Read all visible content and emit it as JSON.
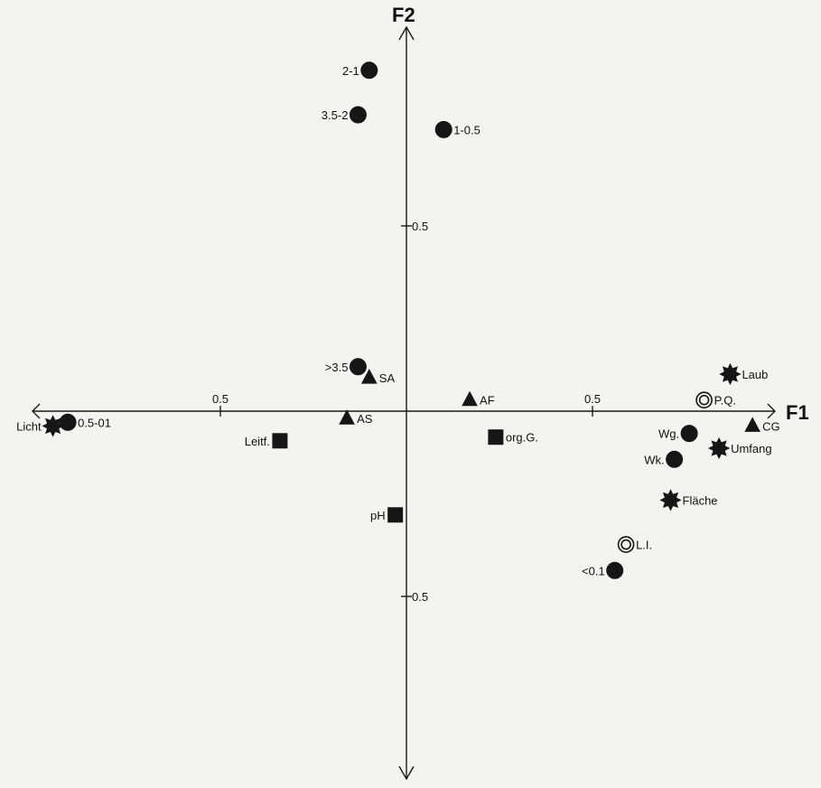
{
  "chart_data": {
    "type": "scatter",
    "title": "",
    "xlabel": "F1",
    "ylabel": "F2",
    "xlim": [
      -1.0,
      1.0
    ],
    "ylim": [
      -1.0,
      1.0
    ],
    "x_ticks": [
      {
        "value": -0.5,
        "label": "0.5"
      },
      {
        "value": 0.5,
        "label": "0.5"
      }
    ],
    "y_ticks": [
      {
        "value": 0.5,
        "label": "0.5"
      },
      {
        "value": -0.5,
        "label": "0.5"
      }
    ],
    "grid": false,
    "points": [
      {
        "label": "2-1",
        "x": -0.1,
        "y": 0.92,
        "marker": "circle",
        "label_side": "left"
      },
      {
        "label": "3.5-2",
        "x": -0.13,
        "y": 0.8,
        "marker": "circle",
        "label_side": "left"
      },
      {
        "label": "1-0.5",
        "x": 0.1,
        "y": 0.76,
        "marker": "circle",
        "label_side": "right"
      },
      {
        "label": ">3.5",
        "x": -0.13,
        "y": 0.12,
        "marker": "circle",
        "label_side": "left"
      },
      {
        "label": "0.5-01",
        "x": -0.91,
        "y": -0.03,
        "marker": "circle",
        "label_side": "right"
      },
      {
        "label": "Wg.",
        "x": 0.76,
        "y": -0.06,
        "marker": "circle",
        "label_side": "left"
      },
      {
        "label": "Wk.",
        "x": 0.72,
        "y": -0.13,
        "marker": "circle",
        "label_side": "left"
      },
      {
        "label": "<0.1",
        "x": 0.56,
        "y": -0.43,
        "marker": "circle",
        "label_side": "left"
      },
      {
        "label": "SA",
        "x": -0.1,
        "y": 0.09,
        "marker": "triangle",
        "label_side": "right"
      },
      {
        "label": "AF",
        "x": 0.17,
        "y": 0.03,
        "marker": "triangle",
        "label_side": "right"
      },
      {
        "label": "AS",
        "x": -0.16,
        "y": -0.02,
        "marker": "triangle",
        "label_side": "right"
      },
      {
        "label": "CG",
        "x": 0.93,
        "y": -0.04,
        "marker": "triangle",
        "label_side": "right"
      },
      {
        "label": "Leitf.",
        "x": -0.34,
        "y": -0.08,
        "marker": "square",
        "label_side": "left"
      },
      {
        "label": "org.G.",
        "x": 0.24,
        "y": -0.07,
        "marker": "square",
        "label_side": "right"
      },
      {
        "label": "pH",
        "x": -0.03,
        "y": -0.28,
        "marker": "square",
        "label_side": "left"
      },
      {
        "label": "Laub",
        "x": 0.87,
        "y": 0.1,
        "marker": "star",
        "label_side": "right"
      },
      {
        "label": "Umfang",
        "x": 0.84,
        "y": -0.1,
        "marker": "star",
        "label_side": "right"
      },
      {
        "label": "Fläche",
        "x": 0.71,
        "y": -0.24,
        "marker": "star",
        "label_side": "right"
      },
      {
        "label": "Licht",
        "x": -0.95,
        "y": -0.04,
        "marker": "star",
        "label_side": "left"
      },
      {
        "label": "P.Q.",
        "x": 0.8,
        "y": 0.03,
        "marker": "ring",
        "label_side": "right"
      },
      {
        "label": "L.I.",
        "x": 0.59,
        "y": -0.36,
        "marker": "ring",
        "label_side": "right"
      }
    ]
  }
}
